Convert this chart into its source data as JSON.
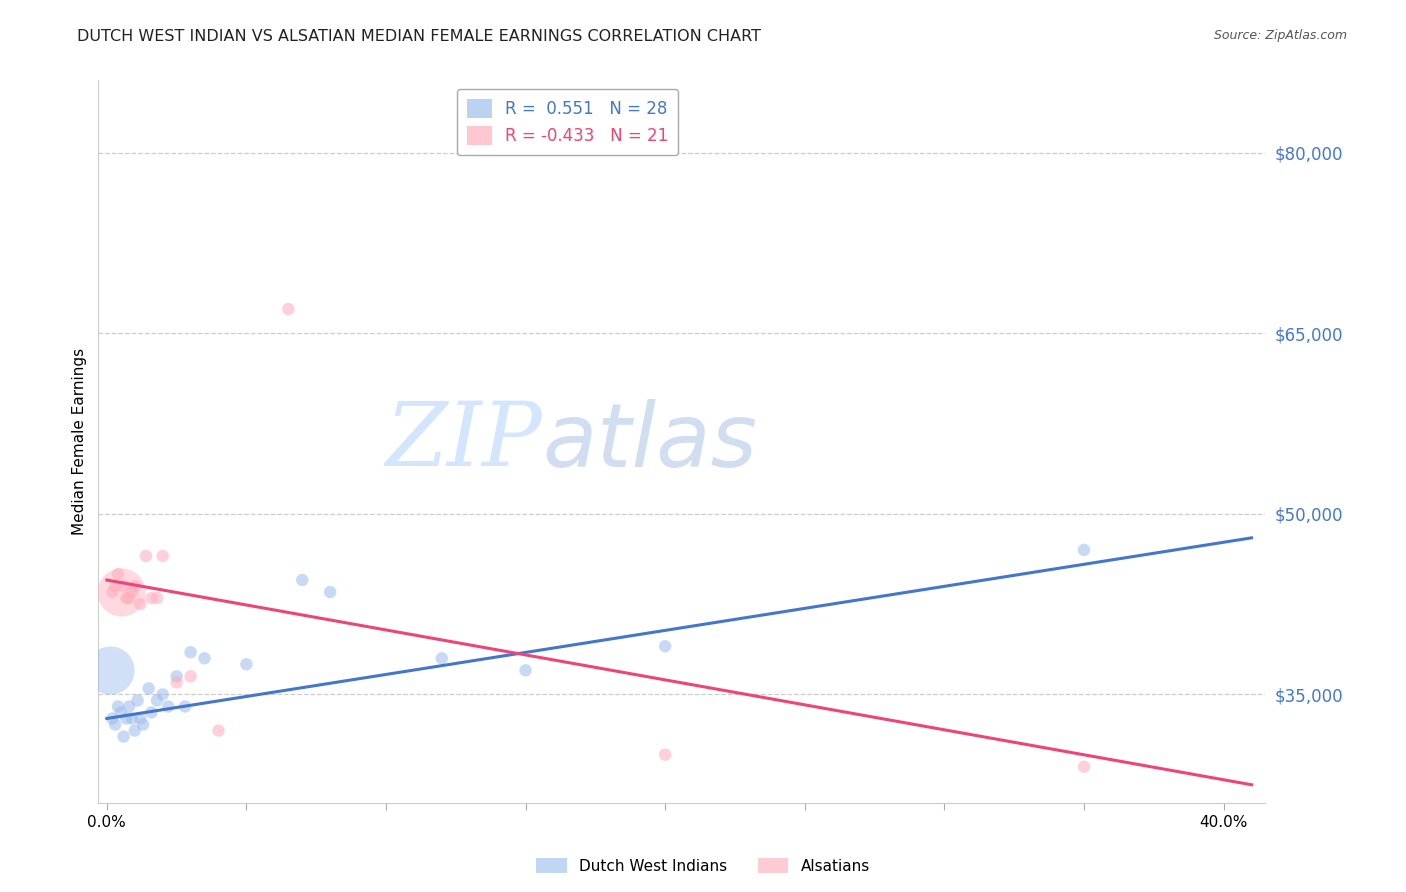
{
  "title": "DUTCH WEST INDIAN VS ALSATIAN MEDIAN FEMALE EARNINGS CORRELATION CHART",
  "source": "Source: ZipAtlas.com",
  "ylabel": "Median Female Earnings",
  "yticks": [
    35000,
    50000,
    65000,
    80000
  ],
  "ytick_labels": [
    "$35,000",
    "$50,000",
    "$65,000",
    "$80,000"
  ],
  "ylim": [
    26000,
    86000
  ],
  "xlim": [
    -0.003,
    0.415
  ],
  "blue_color": "#99BBEE",
  "pink_color": "#FFAABB",
  "blue_line_color": "#4477CC",
  "pink_line_color": "#EE4477",
  "axis_label_color": "#4477CC",
  "R_blue": "0.551",
  "N_blue": "28",
  "R_pink": "-0.433",
  "N_pink": "21",
  "blue_line_x0": 0.0,
  "blue_line_x1": 0.41,
  "blue_line_y0": 33000,
  "blue_line_y1": 48000,
  "pink_line_x0": 0.0,
  "pink_line_x1": 0.41,
  "pink_line_y0": 44500,
  "pink_line_y1": 27500,
  "blue_x": [
    0.002,
    0.003,
    0.004,
    0.005,
    0.006,
    0.007,
    0.008,
    0.009,
    0.01,
    0.011,
    0.012,
    0.013,
    0.015,
    0.016,
    0.018,
    0.02,
    0.022,
    0.025,
    0.028,
    0.03,
    0.035,
    0.05,
    0.07,
    0.08,
    0.12,
    0.15,
    0.2,
    0.35
  ],
  "blue_y": [
    33000,
    32500,
    34000,
    33500,
    31500,
    33000,
    34000,
    33000,
    32000,
    34500,
    33000,
    32500,
    35500,
    33500,
    34500,
    35000,
    34000,
    36500,
    34000,
    38500,
    38000,
    37500,
    44500,
    43500,
    38000,
    37000,
    39000,
    47000
  ],
  "blue_sizes": [
    80,
    80,
    80,
    80,
    80,
    80,
    80,
    80,
    80,
    80,
    80,
    80,
    80,
    80,
    80,
    80,
    80,
    80,
    80,
    80,
    80,
    80,
    80,
    80,
    80,
    80,
    80,
    80
  ],
  "blue_large_x": [
    0.001
  ],
  "blue_large_y": [
    37000
  ],
  "blue_large_size": [
    1200
  ],
  "pink_x": [
    0.002,
    0.003,
    0.004,
    0.006,
    0.007,
    0.008,
    0.009,
    0.01,
    0.012,
    0.014,
    0.016,
    0.018,
    0.02,
    0.025,
    0.03,
    0.04,
    0.065,
    0.2,
    0.35
  ],
  "pink_y": [
    43500,
    44000,
    45000,
    44000,
    43000,
    43000,
    43500,
    44000,
    42500,
    46500,
    43000,
    43000,
    46500,
    36000,
    36500,
    32000,
    67000,
    30000,
    29000
  ],
  "pink_sizes": [
    80,
    80,
    80,
    80,
    80,
    80,
    80,
    80,
    80,
    80,
    80,
    80,
    80,
    80,
    80,
    80,
    80,
    80,
    80
  ],
  "pink_large_x": [
    0.005
  ],
  "pink_large_y": [
    43500
  ],
  "pink_large_size": [
    1200
  ]
}
